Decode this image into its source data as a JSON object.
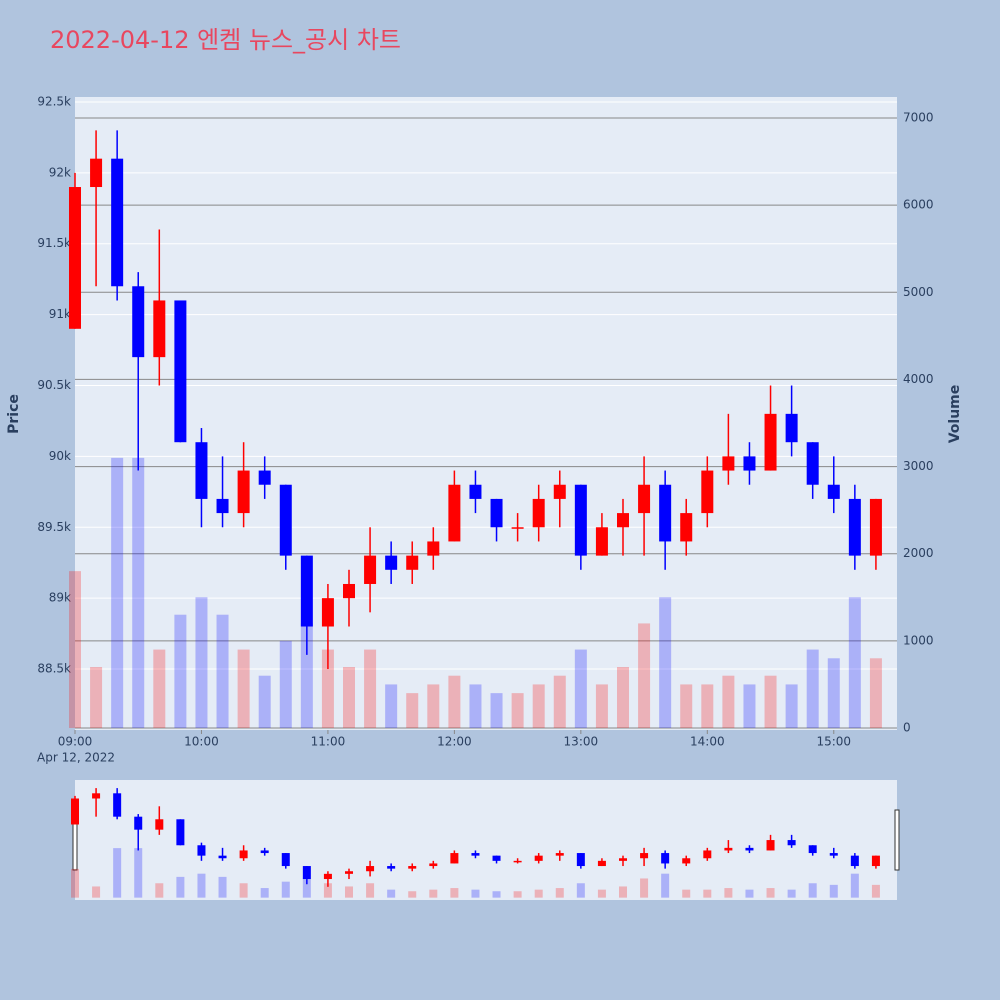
{
  "chart_data": {
    "type": "candlestick",
    "title": "2022-04-12 엔켐 뉴스_공시 차트",
    "y_label": "Price",
    "y2_label": "Volume",
    "x_date_label": "Apr 12, 2022",
    "increasing_color": "#ff0000",
    "decreasing_color": "#0000ff",
    "x": [
      "2022-04-12 09:00",
      "2022-04-12 09:10",
      "2022-04-12 09:20",
      "2022-04-12 09:30",
      "2022-04-12 09:40",
      "2022-04-12 09:50",
      "2022-04-12 10:00",
      "2022-04-12 10:10",
      "2022-04-12 10:20",
      "2022-04-12 10:30",
      "2022-04-12 10:40",
      "2022-04-12 10:50",
      "2022-04-12 11:00",
      "2022-04-12 11:10",
      "2022-04-12 11:20",
      "2022-04-12 11:30",
      "2022-04-12 11:40",
      "2022-04-12 11:50",
      "2022-04-12 12:00",
      "2022-04-12 12:10",
      "2022-04-12 12:20",
      "2022-04-12 12:30",
      "2022-04-12 12:40",
      "2022-04-12 12:50",
      "2022-04-12 13:00",
      "2022-04-12 13:10",
      "2022-04-12 13:20",
      "2022-04-12 13:30",
      "2022-04-12 13:40",
      "2022-04-12 13:50",
      "2022-04-12 14:00",
      "2022-04-12 14:10",
      "2022-04-12 14:20",
      "2022-04-12 14:30",
      "2022-04-12 14:40",
      "2022-04-12 14:50",
      "2022-04-12 15:00",
      "2022-04-12 15:10",
      "2022-04-12 15:20"
    ],
    "open": [
      90900,
      91900,
      92100,
      91200,
      90700,
      91100,
      90100,
      89700,
      89600,
      89900,
      89800,
      89300,
      88800,
      89000,
      89100,
      89300,
      89200,
      89300,
      89400,
      89800,
      89700,
      89500,
      89500,
      89700,
      89800,
      89300,
      89500,
      89600,
      89800,
      89400,
      89600,
      89900,
      90000,
      89900,
      90300,
      90100,
      89800,
      89700,
      89300
    ],
    "high": [
      92000,
      92300,
      92300,
      91300,
      91600,
      91100,
      90200,
      90000,
      90100,
      90000,
      89800,
      89300,
      89100,
      89200,
      89500,
      89400,
      89400,
      89500,
      89900,
      89900,
      89700,
      89600,
      89800,
      89900,
      89800,
      89600,
      89700,
      90000,
      89900,
      89700,
      90000,
      90300,
      90100,
      90500,
      90500,
      90100,
      90000,
      89800,
      89700
    ],
    "low": [
      90900,
      91200,
      91100,
      89900,
      90500,
      90100,
      89500,
      89500,
      89500,
      89700,
      89200,
      88600,
      88500,
      88800,
      88900,
      89100,
      89100,
      89200,
      89400,
      89600,
      89400,
      89400,
      89400,
      89500,
      89200,
      89300,
      89300,
      89300,
      89200,
      89300,
      89500,
      89800,
      89800,
      89900,
      90000,
      89700,
      89600,
      89200,
      89200
    ],
    "close": [
      91900,
      92100,
      91200,
      90700,
      91100,
      90100,
      89700,
      89600,
      89900,
      89800,
      89300,
      88800,
      89000,
      89100,
      89300,
      89200,
      89300,
      89400,
      89800,
      89700,
      89500,
      89500,
      89700,
      89800,
      89300,
      89500,
      89600,
      89800,
      89400,
      89600,
      89900,
      90000,
      89900,
      90300,
      90100,
      89800,
      89700,
      89300,
      89700
    ],
    "volume": [
      1800,
      700,
      3100,
      3100,
      900,
      1300,
      1500,
      1300,
      900,
      600,
      1000,
      1200,
      900,
      700,
      900,
      500,
      400,
      500,
      600,
      500,
      400,
      400,
      500,
      600,
      900,
      500,
      700,
      1200,
      1500,
      500,
      500,
      600,
      500,
      600,
      500,
      900,
      800,
      1500,
      800
    ],
    "xlim": [
      "2022-04-12 09:00",
      "2022-04-12 15:30"
    ],
    "xticks": [
      {
        "value": "2022-04-12 09:00",
        "label": "09:00"
      },
      {
        "value": "2022-04-12 10:00",
        "label": "10:00"
      },
      {
        "value": "2022-04-12 11:00",
        "label": "11:00"
      },
      {
        "value": "2022-04-12 12:00",
        "label": "12:00"
      },
      {
        "value": "2022-04-12 13:00",
        "label": "13:00"
      },
      {
        "value": "2022-04-12 14:00",
        "label": "14:00"
      },
      {
        "value": "2022-04-12 15:00",
        "label": "15:00"
      }
    ],
    "ylim": [
      88070,
      92535
    ],
    "yticks": [
      {
        "value": 88500,
        "label": "88.5k"
      },
      {
        "value": 89000,
        "label": "89k"
      },
      {
        "value": 89500,
        "label": "89.5k"
      },
      {
        "value": 90000,
        "label": "90k"
      },
      {
        "value": 90500,
        "label": "90.5k"
      },
      {
        "value": 91000,
        "label": "91k"
      },
      {
        "value": 91500,
        "label": "91.5k"
      },
      {
        "value": 92000,
        "label": "92k"
      },
      {
        "value": 92500,
        "label": "92.5k"
      }
    ],
    "y2lim": [
      -23,
      7241
    ],
    "y2ticks": [
      0,
      1000,
      2000,
      3000,
      4000,
      5000,
      6000,
      7000
    ],
    "grid": true
  }
}
